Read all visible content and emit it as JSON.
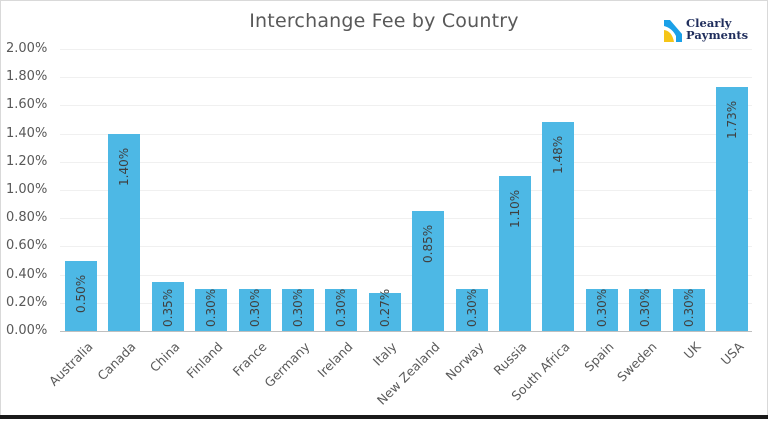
{
  "chart_data": {
    "type": "bar",
    "title": "Interchange Fee by Country",
    "xlabel": "",
    "ylabel": "",
    "ylim": [
      0,
      2.0
    ],
    "y_ticks": [
      "0.00%",
      "0.20%",
      "0.40%",
      "0.60%",
      "0.80%",
      "1.00%",
      "1.20%",
      "1.40%",
      "1.60%",
      "1.80%",
      "2.00%"
    ],
    "grid": true,
    "legend": "none",
    "bar_color": "#4db8e5",
    "categories": [
      "Australia",
      "Canada",
      "China",
      "Finland",
      "France",
      "Germany",
      "Ireland",
      "Italy",
      "New Zealand",
      "Norway",
      "Russia",
      "South Africa",
      "Spain",
      "Sweden",
      "UK",
      "USA"
    ],
    "values": [
      0.5,
      1.4,
      0.35,
      0.3,
      0.3,
      0.3,
      0.3,
      0.27,
      0.85,
      0.3,
      1.1,
      1.48,
      0.3,
      0.3,
      0.3,
      1.73
    ],
    "data_labels": [
      "0.50%",
      "1.40%",
      "0.35%",
      "0.30%",
      "0.30%",
      "0.30%",
      "0.30%",
      "0.27%",
      "0.85%",
      "0.30%",
      "1.10%",
      "1.48%",
      "0.30%",
      "0.30%",
      "0.30%",
      "1.73%"
    ]
  },
  "logo": {
    "line1": "Clearly",
    "line2": "Payments",
    "colors": {
      "blue": "#1aa0e8",
      "yellow": "#f5c518",
      "text": "#1f2d5c"
    }
  }
}
